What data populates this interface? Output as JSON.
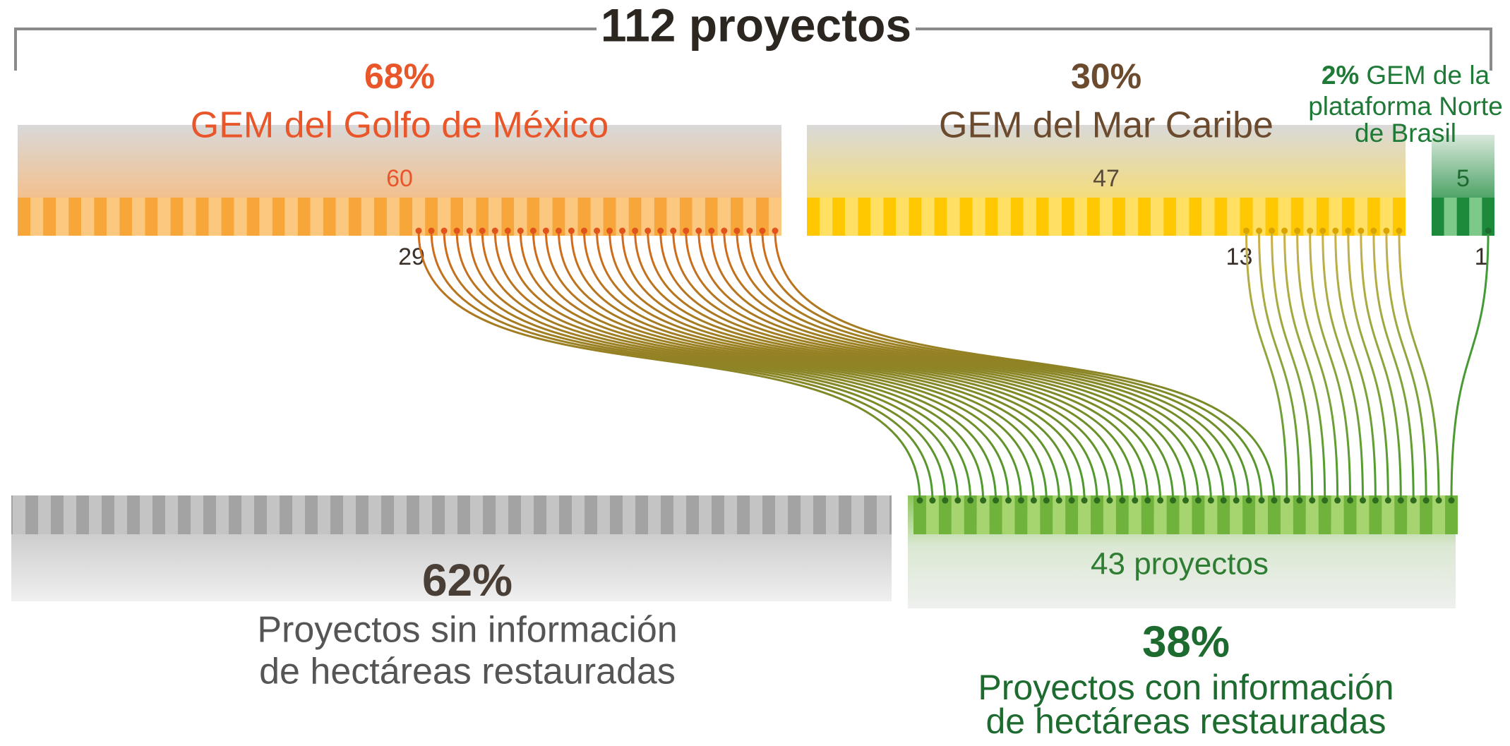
{
  "title": "112 proyectos",
  "regions": [
    {
      "percent": "68%",
      "name": [
        "GEM del Golfo de México"
      ],
      "total": 60,
      "with_info": 29,
      "color": "#e8562a",
      "stripe_colors": [
        "#f7a63a",
        "#fcc77e"
      ],
      "line_color": "#d9691a"
    },
    {
      "percent": "30%",
      "name": [
        "GEM del Mar Caribe"
      ],
      "total": 47,
      "with_info": 13,
      "color": "#6b4a2e",
      "stripe_colors": [
        "#ffc800",
        "#ffe063"
      ],
      "line_color": "#cdb14a"
    },
    {
      "percent": "2%",
      "name": [
        "GEM de la",
        "plataforma Norte",
        "de Brasil"
      ],
      "total": 5,
      "with_info": 1,
      "color": "#1e7a36",
      "stripe_colors": [
        "#1c8a3a",
        "#7cc98a"
      ],
      "line_color": "#3f9a3a"
    }
  ],
  "without_info": {
    "percent": "62%",
    "label": [
      "Proyectos sin información",
      "de hectáreas restauradas"
    ]
  },
  "with_info": {
    "percent": "38%",
    "label": [
      "Proyectos con información",
      "de hectáreas restauradas"
    ],
    "count_label": "43 proyectos"
  }
}
